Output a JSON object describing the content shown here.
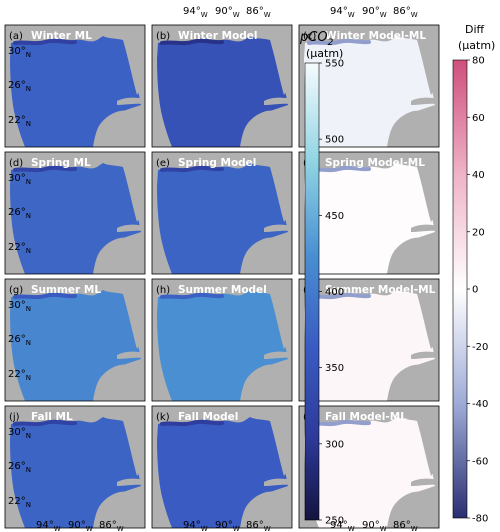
{
  "lon_ticks": [
    {
      "deg": "94°",
      "dir": "W"
    },
    {
      "deg": "90°",
      "dir": "W"
    },
    {
      "deg": "86°",
      "dir": "W"
    }
  ],
  "lat_ticks": [
    {
      "deg": "30°",
      "dir": "N"
    },
    {
      "deg": "26°",
      "dir": "N"
    },
    {
      "deg": "22°",
      "dir": "N"
    }
  ],
  "panels": [
    [
      {
        "label": "(a)",
        "title": "Winter ML",
        "kind": "abs",
        "level": 0.42
      },
      {
        "label": "(b)",
        "title": "Winter Model",
        "kind": "abs",
        "level": 0.34
      },
      {
        "label": "(c)",
        "title": "Winter Model-ML",
        "kind": "diff",
        "level": -0.08
      }
    ],
    [
      {
        "label": "(d)",
        "title": "Spring ML",
        "kind": "abs",
        "level": 0.44
      },
      {
        "label": "(e)",
        "title": "Spring Model",
        "kind": "abs",
        "level": 0.43
      },
      {
        "label": "(f)",
        "title": "Spring Model-ML",
        "kind": "diff",
        "level": 0.02
      }
    ],
    [
      {
        "label": "(g)",
        "title": "Summer ML",
        "kind": "abs",
        "level": 0.57
      },
      {
        "label": "(h)",
        "title": "Summer Model",
        "kind": "abs",
        "level": 0.6
      },
      {
        "label": "(i)",
        "title": "Summer Model-ML",
        "kind": "diff",
        "level": 0.06
      }
    ],
    [
      {
        "label": "(j)",
        "title": "Fall ML",
        "kind": "abs",
        "level": 0.43
      },
      {
        "label": "(k)",
        "title": "Fall Model",
        "kind": "abs",
        "level": 0.4
      },
      {
        "label": "(l)",
        "title": "Fall Model-ML",
        "kind": "diff",
        "level": 0.05
      }
    ]
  ],
  "colorbar_pco2": {
    "title_main": "pCO",
    "title_sub": "2",
    "unit": "(µatm)",
    "min": 250,
    "max": 550,
    "ticks": [
      "550",
      "500",
      "450",
      "400",
      "350",
      "300",
      "250"
    ],
    "colors": [
      "#f6fbfd",
      "#8fd3e3",
      "#4a8fd2",
      "#3a5cc2",
      "#2d3a9a",
      "#14143f"
    ]
  },
  "colorbar_diff": {
    "title_main": "Diff",
    "unit": "(µatm)",
    "min": -80,
    "max": 80,
    "ticks": [
      "80",
      "60",
      "40",
      "20",
      "0",
      "-20",
      "-40",
      "-60",
      "-80"
    ],
    "colors": [
      "#cf4f7d",
      "#efb3c8",
      "#ffffff",
      "#9eabd6",
      "#2a2f72"
    ]
  },
  "colors": {
    "land": "#b0b0b0",
    "title_text": "#ffffff"
  }
}
